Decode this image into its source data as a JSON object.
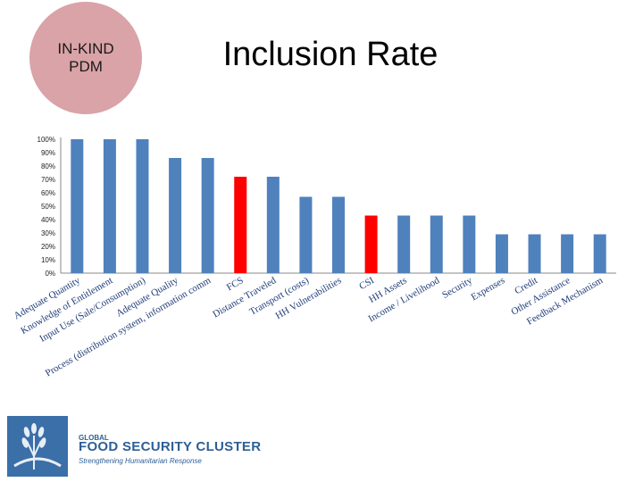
{
  "badge": {
    "line1": "IN-KIND",
    "line2": "PDM"
  },
  "title": "Inclusion Rate",
  "logo": {
    "line1": "GLOBAL",
    "line2": "FOOD SECURITY CLUSTER",
    "line3": "Strengthening Humanitarian Response"
  },
  "colors": {
    "bar": "#4f81bd",
    "highlight": "#ff0000",
    "axis": "#888888",
    "badge": "#d9a3a7",
    "label": "#1f3c78"
  },
  "chart_data": {
    "type": "bar",
    "title": "Inclusion Rate",
    "xlabel": "",
    "ylabel": "",
    "ylim": [
      0,
      100
    ],
    "yticks": [
      "0%",
      "10%",
      "20%",
      "30%",
      "40%",
      "50%",
      "60%",
      "70%",
      "80%",
      "90%",
      "100%"
    ],
    "categories": [
      "Adequate Quantity",
      "Knowledge of Entitlement",
      "Input Use (Sale/Consumption)",
      "Adequate Quality",
      "Process (distribution system, information comm",
      "FCS",
      "Distance Traveled",
      "Transport (costs)",
      "HH Vulnerabilities",
      "CSI",
      "HH Assets",
      "Income / Livelihood",
      "Security",
      "Expenses",
      "Credit",
      "Other Assistance",
      "Feedback Mechanism"
    ],
    "values": [
      100,
      100,
      100,
      86,
      86,
      72,
      72,
      57,
      57,
      43,
      43,
      43,
      43,
      29,
      29,
      29,
      29
    ],
    "highlighted": [
      "FCS",
      "CSI"
    ]
  }
}
